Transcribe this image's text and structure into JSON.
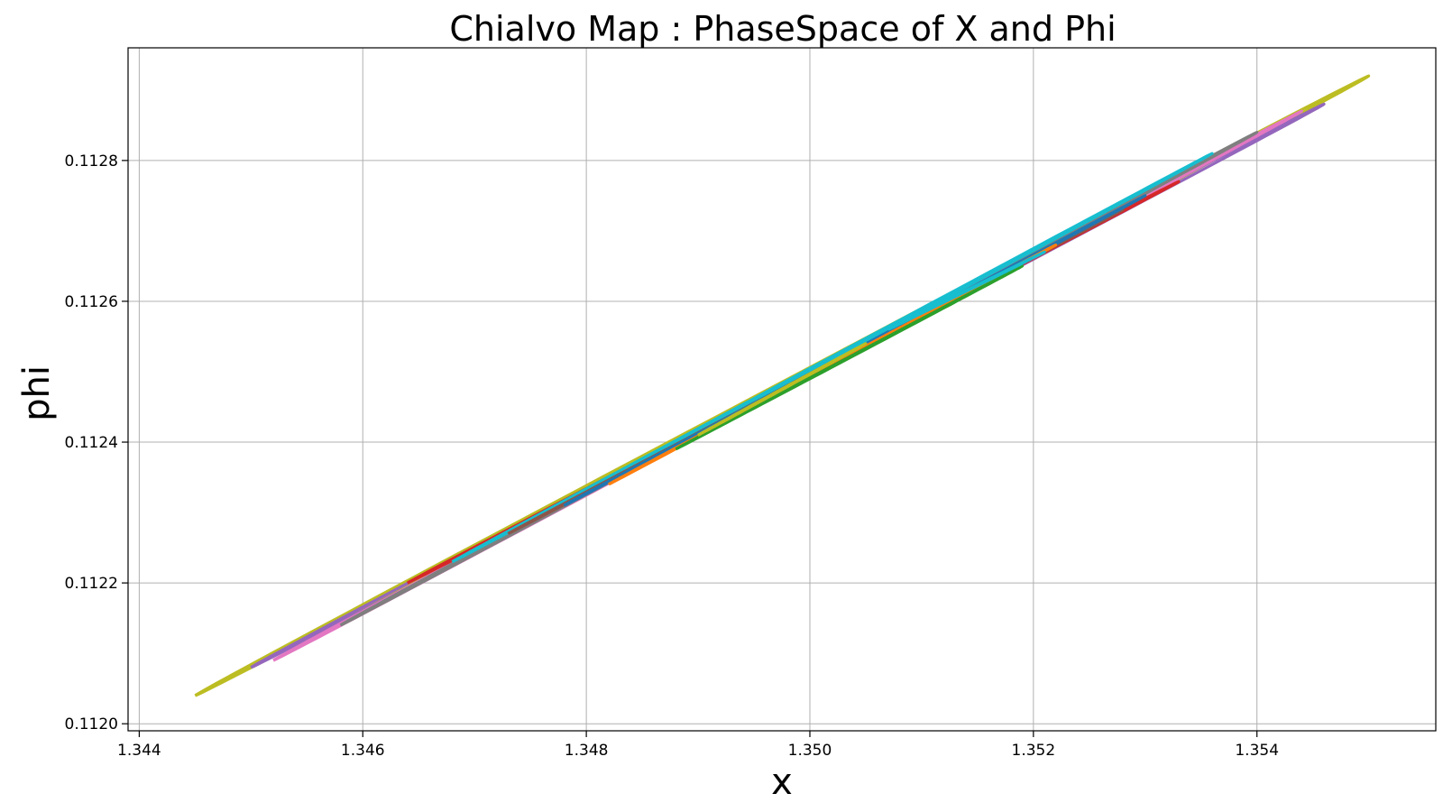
{
  "chart_data": {
    "type": "line",
    "title": "Chialvo Map : PhaseSpace of X and Phi",
    "xlabel": "x",
    "ylabel": "phi",
    "xlim": [
      1.3439,
      1.3556
    ],
    "ylim": [
      0.11199,
      0.11296
    ],
    "grid": true,
    "legend": "none",
    "xticks": [
      1.344,
      1.346,
      1.348,
      1.35,
      1.352,
      1.354
    ],
    "xtick_labels": [
      "1.344",
      "1.346",
      "1.348",
      "1.350",
      "1.352",
      "1.354"
    ],
    "yticks": [
      0.112,
      0.1122,
      0.1124,
      0.1126,
      0.1128
    ],
    "ytick_labels": [
      "0.1120",
      "0.1122",
      "0.1124",
      "0.1126",
      "0.1128"
    ],
    "series": [
      {
        "color": "#bcbd22",
        "x_start": 1.3445,
        "y_start": 0.11204,
        "x_end": 1.355,
        "y_end": 0.11292,
        "width": 5.2e-06
      },
      {
        "color": "#9467bd",
        "x_start": 1.345,
        "y_start": 0.11208,
        "x_end": 1.3546,
        "y_end": 0.11288,
        "width": 4e-06
      },
      {
        "color": "#e377c2",
        "x_start": 1.3452,
        "y_start": 0.11209,
        "x_end": 1.3544,
        "y_end": 0.11287,
        "width": 3.2e-06
      },
      {
        "color": "#7f7f7f",
        "x_start": 1.3458,
        "y_start": 0.11214,
        "x_end": 1.354,
        "y_end": 0.11284,
        "width": 2.6e-06
      },
      {
        "color": "#d62728",
        "x_start": 1.3464,
        "y_start": 0.1122,
        "x_end": 1.3533,
        "y_end": 0.11277,
        "width": 2.2e-06
      },
      {
        "color": "#17becf",
        "x_start": 1.3468,
        "y_start": 0.11223,
        "x_end": 1.3536,
        "y_end": 0.11281,
        "width": 1.8e-06
      },
      {
        "color": "#8c564b",
        "x_start": 1.3473,
        "y_start": 0.11227,
        "x_end": 1.3528,
        "y_end": 0.11273,
        "width": 1.4e-06
      },
      {
        "color": "#1f77b4",
        "x_start": 1.3478,
        "y_start": 0.11231,
        "x_end": 1.353,
        "y_end": 0.11275,
        "width": 1.2e-06
      },
      {
        "color": "#ff7f0e",
        "x_start": 1.3482,
        "y_start": 0.11234,
        "x_end": 1.3522,
        "y_end": 0.11268,
        "width": 1e-06
      },
      {
        "color": "#2ca02c",
        "x_start": 1.3488,
        "y_start": 0.11239,
        "x_end": 1.3519,
        "y_end": 0.11265,
        "width": 8e-07
      },
      {
        "color": "#bcbd22",
        "x_start": 1.349,
        "y_start": 0.11241,
        "x_end": 1.3505,
        "y_end": 0.11254,
        "width": 6e-07
      },
      {
        "color": "#17becf",
        "x_start": 1.3507,
        "y_start": 0.11256,
        "x_end": 1.3521,
        "y_end": 0.11267,
        "width": 7e-07
      }
    ]
  }
}
